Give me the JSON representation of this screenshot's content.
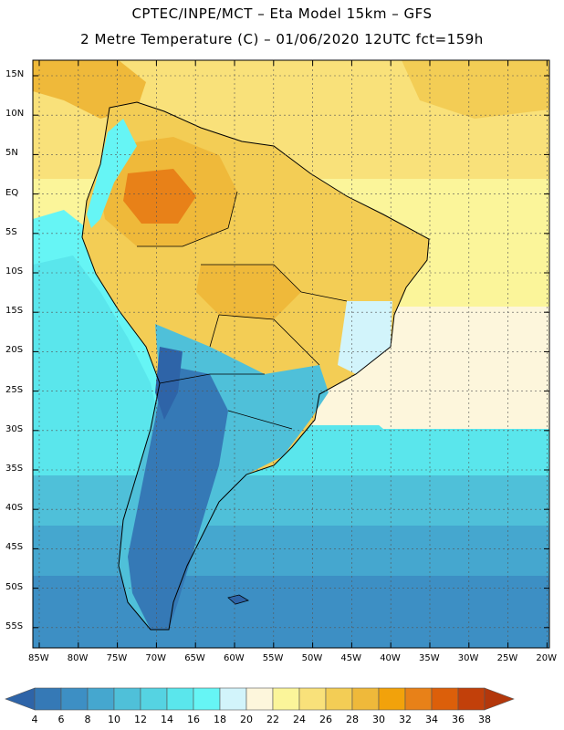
{
  "header": {
    "line1": "CPTEC/INPE/MCT –  Eta Model 15km – GFS",
    "line2": "2 Metre Temperature (C) – 01/06/2020 12UTC fct=159h"
  },
  "lat_labels": [
    "15N",
    "10N",
    "5N",
    "EQ",
    "5S",
    "10S",
    "15S",
    "20S",
    "25S",
    "30S",
    "35S",
    "40S",
    "45S",
    "50S",
    "55S"
  ],
  "lon_labels": [
    "85W",
    "80W",
    "75W",
    "70W",
    "65W",
    "60W",
    "55W",
    "50W",
    "45W",
    "40W",
    "35W",
    "30W",
    "25W",
    "20W"
  ],
  "colorbar": {
    "labels": [
      "4",
      "6",
      "8",
      "10",
      "12",
      "14",
      "16",
      "18",
      "20",
      "22",
      "24",
      "26",
      "28",
      "30",
      "32",
      "34",
      "36",
      "38"
    ],
    "colors": [
      "#2e64a8",
      "#3579b6",
      "#3d8fc4",
      "#45a7cf",
      "#4fc0d9",
      "#55d3e2",
      "#5ae6ec",
      "#66f5f5",
      "#d2f4fb",
      "#fdf6dc",
      "#fbf59a",
      "#f9e17a",
      "#f3cd55",
      "#efb93a",
      "#f2a20b",
      "#e88118",
      "#dc5f0a",
      "#c2400a",
      "#b3370b"
    ]
  }
}
